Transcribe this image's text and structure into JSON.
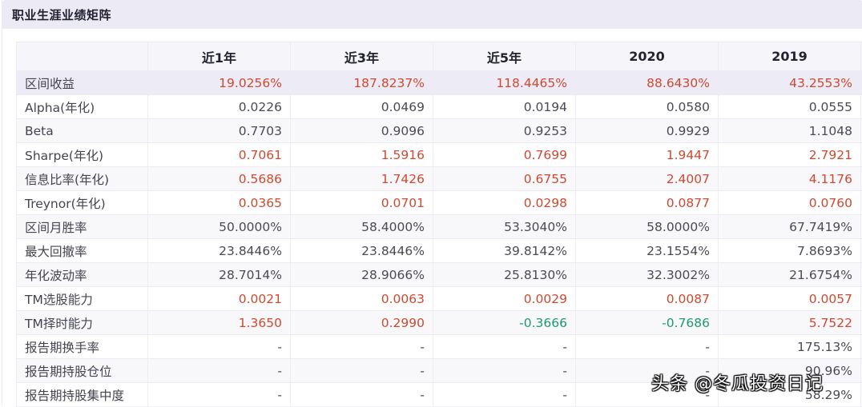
{
  "panel": {
    "title": "职业生涯业绩矩阵"
  },
  "table": {
    "columns": [
      "",
      "近1年",
      "近3年",
      "近5年",
      "2020",
      "2019"
    ],
    "rows": [
      {
        "label": "区间收益",
        "values": [
          "19.0256%",
          "187.8237%",
          "118.4465%",
          "88.6430%",
          "43.2553%"
        ],
        "colors": [
          "red",
          "red",
          "red",
          "red",
          "red"
        ]
      },
      {
        "label": "Alpha(年化)",
        "values": [
          "0.0226",
          "0.0469",
          "0.0194",
          "0.0580",
          "0.0555"
        ],
        "colors": [
          "",
          "",
          "",
          "",
          ""
        ]
      },
      {
        "label": "Beta",
        "values": [
          "0.7703",
          "0.9096",
          "0.9253",
          "0.9929",
          "1.1048"
        ],
        "colors": [
          "",
          "",
          "",
          "",
          ""
        ]
      },
      {
        "label": "Sharpe(年化)",
        "values": [
          "0.7061",
          "1.5916",
          "0.7699",
          "1.9447",
          "2.7921"
        ],
        "colors": [
          "red",
          "red",
          "red",
          "red",
          "red"
        ]
      },
      {
        "label": "信息比率(年化)",
        "values": [
          "0.5686",
          "1.7426",
          "0.6755",
          "2.4007",
          "4.1176"
        ],
        "colors": [
          "red",
          "red",
          "red",
          "red",
          "red"
        ]
      },
      {
        "label": "Treynor(年化)",
        "values": [
          "0.0365",
          "0.0701",
          "0.0298",
          "0.0877",
          "0.0760"
        ],
        "colors": [
          "red",
          "red",
          "red",
          "red",
          "red"
        ]
      },
      {
        "label": "区间月胜率",
        "values": [
          "50.0000%",
          "58.4000%",
          "53.3040%",
          "58.0000%",
          "67.7419%"
        ],
        "colors": [
          "",
          "",
          "",
          "",
          ""
        ]
      },
      {
        "label": "最大回撤率",
        "values": [
          "23.8446%",
          "23.8446%",
          "39.8142%",
          "23.1554%",
          "7.8693%"
        ],
        "colors": [
          "",
          "",
          "",
          "",
          ""
        ]
      },
      {
        "label": "年化波动率",
        "values": [
          "28.7014%",
          "28.9066%",
          "25.8130%",
          "32.3002%",
          "21.6754%"
        ],
        "colors": [
          "",
          "",
          "",
          "",
          ""
        ]
      },
      {
        "label": "TM选股能力",
        "values": [
          "0.0021",
          "0.0063",
          "0.0029",
          "0.0087",
          "0.0057"
        ],
        "colors": [
          "red",
          "red",
          "red",
          "red",
          "red"
        ]
      },
      {
        "label": "TM择时能力",
        "values": [
          "1.3650",
          "0.2990",
          "-0.3666",
          "-0.7686",
          "5.7522"
        ],
        "colors": [
          "red",
          "red",
          "green",
          "green",
          "red"
        ]
      },
      {
        "label": "报告期换手率",
        "values": [
          "-",
          "-",
          "-",
          "-",
          "175.13%"
        ],
        "colors": [
          "",
          "",
          "",
          "",
          ""
        ]
      },
      {
        "label": "报告期持股仓位",
        "values": [
          "-",
          "-",
          "-",
          "-",
          "90.96%"
        ],
        "colors": [
          "",
          "",
          "",
          "",
          ""
        ]
      },
      {
        "label": "报告期持股集中度",
        "values": [
          "-",
          "-",
          "-",
          "-",
          "58.29%"
        ],
        "colors": [
          "",
          "",
          "",
          "",
          ""
        ]
      }
    ]
  },
  "watermark": "头条 @冬瓜投资日记",
  "colors": {
    "positive": "#d0492f",
    "negative": "#1c9a6b",
    "header_bg": "#ebeaf5"
  }
}
